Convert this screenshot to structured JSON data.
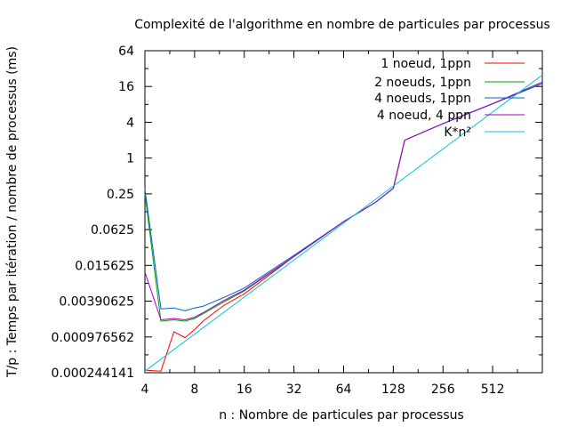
{
  "chart_data": {
    "type": "line",
    "title": "Complexité de l'algorithme en nombre de particules par processus",
    "xlabel": "n : Nombre de particules par processus",
    "ylabel": "T/p : Temps par itération / nombre de processus (ms)",
    "xscale": "log2",
    "yscale": "log4",
    "xlim": [
      4,
      1024
    ],
    "ylim": [
      0.000244141,
      64
    ],
    "xticks": [
      4,
      8,
      16,
      32,
      64,
      128,
      256,
      512
    ],
    "xtick_labels": [
      "4",
      "8",
      "16",
      "32",
      "64",
      "128",
      "256",
      "512"
    ],
    "yticks": [
      0.000244141,
      0.000976562,
      0.00390625,
      0.015625,
      0.0625,
      0.25,
      1,
      4,
      16,
      64
    ],
    "ytick_labels": [
      "0.000244141",
      "0.000976562",
      "0.00390625",
      "0.015625",
      "0.0625",
      "0.25",
      "1",
      "4",
      "16",
      "64"
    ],
    "grid": false,
    "legend_position": "top-right",
    "series": [
      {
        "name": "1 noeud, 1ppn",
        "color": "#ff0000",
        "x": [
          4,
          5,
          6,
          7,
          8,
          9,
          12,
          16,
          32,
          64,
          100,
          128,
          150,
          256,
          512,
          1024
        ],
        "y": [
          0.00027,
          0.00026,
          0.0012,
          0.00095,
          0.0013,
          0.0018,
          0.0033,
          0.0052,
          0.022,
          0.085,
          0.18,
          0.31,
          2.0,
          3.8,
          8.2,
          18
        ]
      },
      {
        "name": "2 noeuds, 1ppn",
        "color": "#00a000",
        "x": [
          4,
          5,
          6,
          7,
          8,
          9,
          12,
          16,
          32,
          64,
          100,
          128,
          150,
          256,
          512,
          1024
        ],
        "y": [
          0.25,
          0.0018,
          0.0019,
          0.0018,
          0.002,
          0.0024,
          0.0038,
          0.0058,
          0.022,
          0.085,
          0.18,
          0.31,
          2.0,
          3.8,
          8.2,
          18
        ]
      },
      {
        "name": "4 noeuds, 1ppn",
        "color": "#0060d0",
        "x": [
          4,
          5,
          6,
          7,
          8,
          9,
          12,
          16,
          32,
          64,
          100,
          128,
          150,
          256,
          512,
          1024
        ],
        "y": [
          0.3,
          0.0029,
          0.003,
          0.0027,
          0.003,
          0.0032,
          0.0045,
          0.0065,
          0.023,
          0.085,
          0.18,
          0.31,
          2.0,
          3.8,
          8.2,
          18
        ]
      },
      {
        "name": "4 noeud, 4 ppn",
        "color": "#a000c0",
        "x": [
          4,
          5,
          6,
          7,
          8,
          9,
          12,
          16,
          32,
          64,
          100,
          128,
          150,
          256,
          512,
          1024
        ],
        "y": [
          0.012,
          0.0019,
          0.002,
          0.0019,
          0.0021,
          0.0025,
          0.004,
          0.006,
          0.022,
          0.085,
          0.18,
          0.31,
          2.0,
          3.8,
          8.2,
          19
        ]
      },
      {
        "name": "K*n²",
        "color": "#00c8e0",
        "x": [
          4,
          1024
        ],
        "y": [
          0.00026,
          25
        ]
      }
    ]
  }
}
